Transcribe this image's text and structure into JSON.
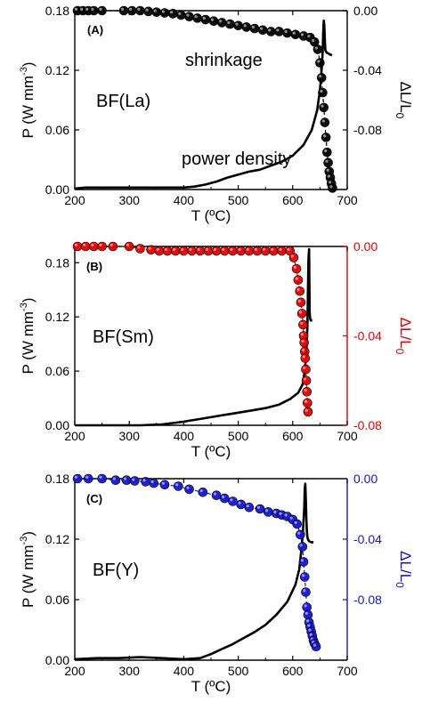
{
  "chart_data": [
    {
      "type": "line",
      "panel_label": "(A)",
      "sample_label": "BF(La)",
      "annotations": [
        "shrinkage",
        "power density"
      ],
      "xlabel": "T (ºC)",
      "ylabel": "P (W mm",
      "ylabel_sup": "-3",
      "ylabel_close": ")",
      "y2label": "ΔL/L",
      "y2label_sub": "0",
      "xlim": [
        200,
        700
      ],
      "ylim": [
        0,
        0.18
      ],
      "y2lim": [
        -0.12,
        0
      ],
      "xticks": [
        "200",
        "300",
        "400",
        "500",
        "600",
        "700"
      ],
      "yticks": [
        "0.00",
        "0.06",
        "0.12",
        "0.18"
      ],
      "y2ticks": [
        "0.00",
        "-0.04",
        "-0.08"
      ],
      "y2_color": "#000000",
      "series": [
        {
          "axis": "left",
          "style": "line",
          "color": "#000000",
          "x": [
            200,
            220,
            260,
            300,
            340,
            380,
            400,
            420,
            440,
            460,
            480,
            500,
            520,
            540,
            560,
            580,
            600,
            620,
            635,
            645,
            650,
            653,
            655,
            656,
            657,
            658,
            659,
            660,
            662,
            665,
            668,
            672
          ],
          "y": [
            0.001,
            0.002,
            0.002,
            0.002,
            0.002,
            0.002,
            0.002,
            0.003,
            0.005,
            0.008,
            0.012,
            0.015,
            0.018,
            0.02,
            0.024,
            0.028,
            0.034,
            0.045,
            0.06,
            0.08,
            0.1,
            0.12,
            0.14,
            0.16,
            0.17,
            0.165,
            0.15,
            0.14,
            0.138,
            0.137,
            0.136,
            0.135
          ]
        },
        {
          "axis": "right",
          "style": "markers",
          "color": "#000000",
          "x": [
            205,
            215,
            225,
            235,
            250,
            290,
            305,
            320,
            335,
            350,
            365,
            380,
            395,
            410,
            425,
            440,
            455,
            470,
            485,
            500,
            515,
            530,
            545,
            560,
            575,
            590,
            605,
            620,
            632,
            640,
            646,
            650,
            653,
            655,
            657,
            659,
            661,
            663,
            665,
            667,
            669,
            671,
            673
          ],
          "y": [
            0.0,
            0.0,
            0.0,
            0.0,
            0.0,
            0.0,
            0.0,
            0.0,
            -0.0005,
            -0.001,
            -0.0015,
            -0.002,
            -0.003,
            -0.004,
            -0.005,
            -0.006,
            -0.007,
            -0.008,
            -0.009,
            -0.01,
            -0.011,
            -0.012,
            -0.013,
            -0.014,
            -0.014,
            -0.015,
            -0.016,
            -0.017,
            -0.018,
            -0.021,
            -0.026,
            -0.035,
            -0.045,
            -0.055,
            -0.065,
            -0.075,
            -0.085,
            -0.095,
            -0.102,
            -0.108,
            -0.112,
            -0.116,
            -0.119
          ]
        }
      ]
    },
    {
      "type": "line",
      "panel_label": "(B)",
      "sample_label": "BF(Sm)",
      "annotations": [],
      "xlabel": "T (ºC)",
      "ylabel": "P (W mm",
      "ylabel_sup": "-3",
      "ylabel_close": ")",
      "y2label": "ΔL/L",
      "y2label_sub": "0",
      "xlim": [
        200,
        700
      ],
      "ylim": [
        0,
        0.198
      ],
      "y2lim": [
        -0.08,
        0
      ],
      "xticks": [
        "200",
        "300",
        "400",
        "500",
        "600",
        "700"
      ],
      "yticks": [
        "0.00",
        "0.06",
        "0.12",
        "0.18"
      ],
      "y2ticks": [
        "0.00",
        "-0.04",
        "-0.08"
      ],
      "y2_color": "#e60000",
      "series": [
        {
          "axis": "left",
          "style": "line",
          "color": "#000000",
          "x": [
            200,
            240,
            280,
            320,
            360,
            400,
            440,
            480,
            520,
            550,
            575,
            595,
            610,
            618,
            622,
            625,
            627,
            628,
            629,
            630,
            631,
            632,
            633,
            634,
            636
          ],
          "y": [
            0.0,
            0.0,
            0.0,
            0.0,
            0.001,
            0.004,
            0.008,
            0.012,
            0.016,
            0.019,
            0.023,
            0.029,
            0.036,
            0.045,
            0.06,
            0.08,
            0.11,
            0.15,
            0.185,
            0.195,
            0.125,
            0.118,
            0.116,
            0.116,
            0.116
          ]
        },
        {
          "axis": "right",
          "style": "markers",
          "color": "#e60000",
          "x": [
            205,
            220,
            235,
            250,
            270,
            300,
            320,
            340,
            355,
            370,
            385,
            400,
            415,
            430,
            445,
            460,
            475,
            490,
            505,
            520,
            535,
            550,
            565,
            580,
            595,
            602,
            607,
            610,
            613,
            615,
            617,
            619,
            620,
            621,
            622,
            623,
            624,
            625,
            626,
            627,
            628
          ],
          "y": [
            0.0,
            0.0,
            0.0,
            0.0,
            0.0,
            0.0,
            -0.001,
            -0.0015,
            -0.002,
            -0.002,
            -0.002,
            -0.002,
            -0.002,
            -0.002,
            -0.002,
            -0.002,
            -0.002,
            -0.002,
            -0.002,
            -0.002,
            -0.002,
            -0.002,
            -0.002,
            -0.002,
            -0.002,
            -0.005,
            -0.01,
            -0.015,
            -0.02,
            -0.025,
            -0.03,
            -0.035,
            -0.04,
            -0.043,
            -0.047,
            -0.05,
            -0.055,
            -0.06,
            -0.065,
            -0.07,
            -0.074
          ]
        }
      ]
    },
    {
      "type": "line",
      "panel_label": "(C)",
      "sample_label": "BF(Y)",
      "annotations": [],
      "xlabel": "T (ºC)",
      "ylabel": "P (W mm",
      "ylabel_sup": "-3",
      "ylabel_close": ")",
      "y2label": "ΔL/L",
      "y2label_sub": "0",
      "xlim": [
        200,
        700
      ],
      "ylim": [
        0,
        0.18
      ],
      "y2lim": [
        -0.12,
        0
      ],
      "xticks": [
        "200",
        "300",
        "400",
        "500",
        "600",
        "700"
      ],
      "yticks": [
        "0.00",
        "0.06",
        "0.12",
        "0.18"
      ],
      "y2ticks": [
        "0.00",
        "-0.04",
        "-0.08"
      ],
      "y2_color": "#1414d2",
      "series": [
        {
          "axis": "left",
          "style": "line",
          "color": "#000000",
          "x": [
            200,
            240,
            280,
            320,
            360,
            400,
            430,
            450,
            470,
            490,
            510,
            530,
            550,
            570,
            590,
            605,
            612,
            616,
            619,
            621,
            622,
            623,
            624,
            625,
            626,
            627,
            628,
            630,
            634,
            638
          ],
          "y": [
            0.001,
            0.002,
            0.002,
            0.003,
            0.002,
            0.001,
            0.002,
            0.006,
            0.011,
            0.016,
            0.022,
            0.028,
            0.035,
            0.045,
            0.058,
            0.075,
            0.09,
            0.11,
            0.13,
            0.15,
            0.17,
            0.175,
            0.16,
            0.14,
            0.128,
            0.122,
            0.12,
            0.118,
            0.117,
            0.117
          ]
        },
        {
          "axis": "right",
          "style": "markers",
          "color": "#1414d2",
          "x": [
            205,
            225,
            250,
            275,
            295,
            310,
            330,
            345,
            365,
            390,
            410,
            435,
            460,
            475,
            490,
            505,
            520,
            540,
            555,
            570,
            580,
            590,
            600,
            608,
            614,
            618,
            620,
            622,
            624,
            626,
            628,
            630,
            632,
            634,
            636,
            638,
            640,
            643
          ],
          "y": [
            0.0,
            0.0,
            0.0,
            -0.001,
            -0.001,
            -0.0015,
            -0.002,
            -0.003,
            -0.004,
            -0.005,
            -0.007,
            -0.009,
            -0.011,
            -0.013,
            -0.015,
            -0.017,
            -0.019,
            -0.02,
            -0.022,
            -0.023,
            -0.024,
            -0.025,
            -0.027,
            -0.03,
            -0.037,
            -0.045,
            -0.055,
            -0.065,
            -0.075,
            -0.085,
            -0.09,
            -0.095,
            -0.098,
            -0.101,
            -0.104,
            -0.107,
            -0.109,
            -0.111
          ]
        }
      ]
    }
  ]
}
